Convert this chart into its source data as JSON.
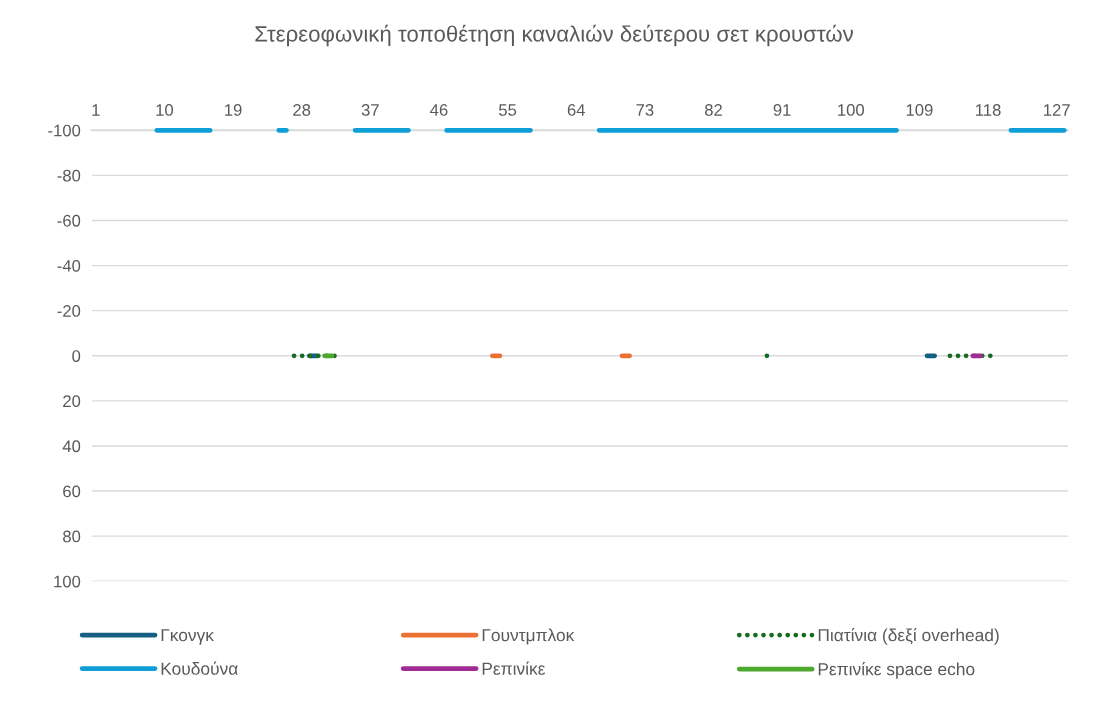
{
  "chart_data": {
    "type": "line",
    "title": "Στερεοφωνική τοποθέτηση καναλιών δεύτερου σετ κρουστών",
    "categories": [
      "1",
      null,
      null,
      null,
      null,
      null,
      null,
      null,
      null,
      "10",
      null,
      null,
      null,
      null,
      null,
      null,
      null,
      null,
      "19",
      null,
      null,
      null,
      null,
      null,
      null,
      null,
      null,
      "28",
      null,
      null,
      null,
      null,
      null,
      null,
      null,
      null,
      "37",
      null,
      null,
      null,
      null,
      null,
      null,
      null,
      null,
      "46",
      null,
      null,
      null,
      null,
      null,
      null,
      null,
      null,
      "55",
      null,
      null,
      null,
      null,
      null,
      null,
      null,
      null,
      "64",
      null,
      null,
      null,
      null,
      null,
      null,
      null,
      null,
      "73",
      null,
      null,
      null,
      null,
      null,
      null,
      null,
      null,
      "82",
      null,
      null,
      null,
      null,
      null,
      null,
      null,
      null,
      "91",
      null,
      null,
      null,
      null,
      null,
      null,
      null,
      null,
      "100",
      null,
      null,
      null,
      null,
      null,
      null,
      null,
      null,
      "109",
      null,
      null,
      null,
      null,
      null,
      null,
      null,
      null,
      "118",
      null,
      null,
      null,
      null,
      null,
      null,
      null,
      null,
      "127",
      null
    ],
    "ylim": [
      100,
      -100
    ],
    "yticks": [
      -100,
      -80,
      -60,
      -40,
      -20,
      0,
      20,
      40,
      60,
      80,
      100
    ],
    "grid": "y",
    "legend": "bottom",
    "line_style": "solid",
    "marker": "none",
    "series": [
      {
        "name": "Γκονγκ",
        "color": "#156082",
        "values": [
          null,
          null,
          null,
          null,
          null,
          null,
          null,
          null,
          null,
          null,
          null,
          null,
          null,
          null,
          null,
          null,
          null,
          null,
          null,
          null,
          null,
          null,
          null,
          null,
          null,
          null,
          null,
          null,
          0,
          0,
          null,
          null,
          null,
          null,
          null,
          null,
          null,
          null,
          null,
          null,
          null,
          null,
          null,
          null,
          null,
          null,
          null,
          null,
          null,
          null,
          null,
          null,
          null,
          null,
          null,
          null,
          null,
          null,
          null,
          null,
          null,
          null,
          null,
          null,
          null,
          null,
          null,
          null,
          null,
          null,
          null,
          null,
          null,
          null,
          null,
          null,
          null,
          null,
          null,
          null,
          null,
          null,
          null,
          null,
          null,
          null,
          null,
          null,
          null,
          null,
          null,
          null,
          null,
          null,
          null,
          null,
          null,
          null,
          null,
          null,
          null,
          null,
          null,
          null,
          null,
          null,
          null,
          null,
          null,
          0,
          0,
          null,
          null,
          null,
          null,
          null,
          null,
          null,
          null,
          null,
          null,
          null,
          null,
          null,
          null,
          null,
          null,
          null
        ]
      },
      {
        "name": "Γουντμπλοκ",
        "color": "#e97132",
        "values": [
          null,
          null,
          null,
          null,
          null,
          null,
          null,
          null,
          null,
          null,
          null,
          null,
          null,
          null,
          null,
          null,
          null,
          null,
          null,
          null,
          null,
          null,
          null,
          null,
          null,
          null,
          null,
          null,
          null,
          null,
          null,
          null,
          null,
          null,
          null,
          null,
          null,
          null,
          null,
          null,
          null,
          null,
          null,
          null,
          null,
          null,
          null,
          null,
          null,
          null,
          null,
          null,
          0,
          0,
          null,
          null,
          null,
          null,
          null,
          null,
          null,
          null,
          null,
          null,
          null,
          null,
          null,
          null,
          null,
          0,
          0,
          null,
          null,
          null,
          null,
          null,
          null,
          null,
          null,
          null,
          null,
          null,
          null,
          null,
          null,
          null,
          null,
          null,
          null,
          null,
          null,
          null,
          null,
          null,
          null,
          null,
          null,
          null,
          null,
          null,
          null,
          null,
          null,
          null,
          null,
          null,
          null,
          null,
          null,
          null,
          null,
          null,
          null,
          null,
          null,
          null,
          null,
          null,
          null,
          null,
          null,
          null,
          null,
          null,
          null,
          null,
          null,
          null
        ]
      },
      {
        "name": "Πιατίνια (δεξί overhead)",
        "color": "#196b24",
        "line_style": "dotted",
        "values": [
          null,
          null,
          null,
          null,
          null,
          null,
          null,
          null,
          null,
          null,
          null,
          null,
          null,
          null,
          null,
          null,
          null,
          null,
          null,
          null,
          null,
          null,
          null,
          null,
          null,
          null,
          0,
          0,
          0,
          0,
          0,
          0,
          0,
          null,
          null,
          null,
          null,
          null,
          null,
          null,
          null,
          null,
          null,
          null,
          null,
          null,
          null,
          null,
          null,
          null,
          null,
          null,
          null,
          null,
          null,
          null,
          null,
          null,
          null,
          null,
          null,
          null,
          null,
          null,
          null,
          null,
          null,
          null,
          null,
          null,
          null,
          null,
          null,
          null,
          null,
          null,
          null,
          null,
          null,
          null,
          null,
          null,
          null,
          null,
          null,
          null,
          null,
          null,
          0,
          0,
          null,
          null,
          null,
          null,
          null,
          null,
          null,
          null,
          null,
          null,
          null,
          null,
          null,
          null,
          null,
          null,
          null,
          null,
          null,
          null,
          null,
          null,
          0,
          0,
          0,
          0,
          0,
          0,
          0,
          null,
          null,
          null,
          null,
          null,
          null,
          null,
          null,
          null
        ]
      },
      {
        "name": "Κουδούνα",
        "color": "#0f9ed5",
        "values": [
          null,
          null,
          null,
          null,
          null,
          null,
          null,
          null,
          -100,
          -100,
          -100,
          -100,
          -100,
          -100,
          -100,
          -100,
          null,
          null,
          null,
          null,
          null,
          null,
          null,
          null,
          -100,
          -100,
          null,
          null,
          null,
          null,
          null,
          null,
          null,
          null,
          -100,
          -100,
          -100,
          -100,
          -100,
          -100,
          -100,
          -100,
          null,
          null,
          null,
          null,
          -100,
          -100,
          -100,
          -100,
          -100,
          -100,
          -100,
          -100,
          -100,
          -100,
          -100,
          -100,
          null,
          null,
          null,
          null,
          null,
          null,
          null,
          null,
          -100,
          -100,
          -100,
          -100,
          -100,
          -100,
          -100,
          -100,
          -100,
          -100,
          -100,
          -100,
          -100,
          -100,
          -100,
          -100,
          -100,
          -100,
          -100,
          -100,
          -100,
          -100,
          -100,
          -100,
          -100,
          -100,
          -100,
          -100,
          -100,
          -100,
          -100,
          -100,
          -100,
          -100,
          -100,
          -100,
          -100,
          -100,
          -100,
          -100,
          null,
          null,
          null,
          null,
          null,
          null,
          null,
          null,
          null,
          null,
          null,
          null,
          null,
          null,
          -100,
          -100,
          -100,
          -100,
          -100,
          -100,
          -100,
          -100
        ]
      },
      {
        "name": "Ρεπινίκε",
        "color": "#a02b93",
        "values": [
          null,
          null,
          null,
          null,
          null,
          null,
          null,
          null,
          null,
          null,
          null,
          null,
          null,
          null,
          null,
          null,
          null,
          null,
          null,
          null,
          null,
          null,
          null,
          null,
          null,
          null,
          null,
          null,
          null,
          null,
          null,
          null,
          null,
          null,
          null,
          null,
          null,
          null,
          null,
          null,
          null,
          null,
          null,
          null,
          null,
          null,
          null,
          null,
          null,
          null,
          null,
          null,
          null,
          null,
          null,
          null,
          null,
          null,
          null,
          null,
          null,
          null,
          null,
          null,
          null,
          null,
          null,
          null,
          null,
          null,
          null,
          null,
          null,
          null,
          null,
          null,
          null,
          null,
          null,
          null,
          null,
          null,
          null,
          null,
          null,
          null,
          null,
          null,
          null,
          null,
          null,
          null,
          null,
          null,
          null,
          null,
          null,
          null,
          null,
          null,
          null,
          null,
          null,
          null,
          null,
          null,
          null,
          null,
          null,
          null,
          null,
          null,
          null,
          null,
          null,
          0,
          0,
          null,
          null,
          null,
          null,
          null,
          null,
          null,
          null,
          null,
          null,
          null
        ]
      },
      {
        "name": "Ρεπινίκε space echo",
        "color": "#4ea72e",
        "values": [
          null,
          null,
          null,
          null,
          null,
          null,
          null,
          null,
          null,
          null,
          null,
          null,
          null,
          null,
          null,
          null,
          null,
          null,
          null,
          null,
          null,
          null,
          null,
          null,
          null,
          null,
          null,
          null,
          null,
          null,
          0,
          0,
          null,
          null,
          null,
          null,
          null,
          null,
          null,
          null,
          null,
          null,
          null,
          null,
          null,
          null,
          null,
          null,
          null,
          null,
          null,
          null,
          null,
          null,
          null,
          null,
          null,
          null,
          null,
          null,
          null,
          null,
          null,
          null,
          null,
          null,
          null,
          null,
          null,
          null,
          null,
          null,
          null,
          null,
          null,
          null,
          null,
          null,
          null,
          null,
          null,
          null,
          null,
          null,
          null,
          null,
          null,
          null,
          null,
          null,
          null,
          null,
          null,
          null,
          null,
          null,
          null,
          null,
          null,
          null,
          null,
          null,
          null,
          null,
          null,
          null,
          null,
          null,
          null,
          null,
          null,
          null,
          null,
          null,
          null,
          null,
          null,
          null,
          null,
          null,
          null,
          null,
          null,
          null,
          null,
          null,
          null,
          null
        ]
      }
    ]
  }
}
